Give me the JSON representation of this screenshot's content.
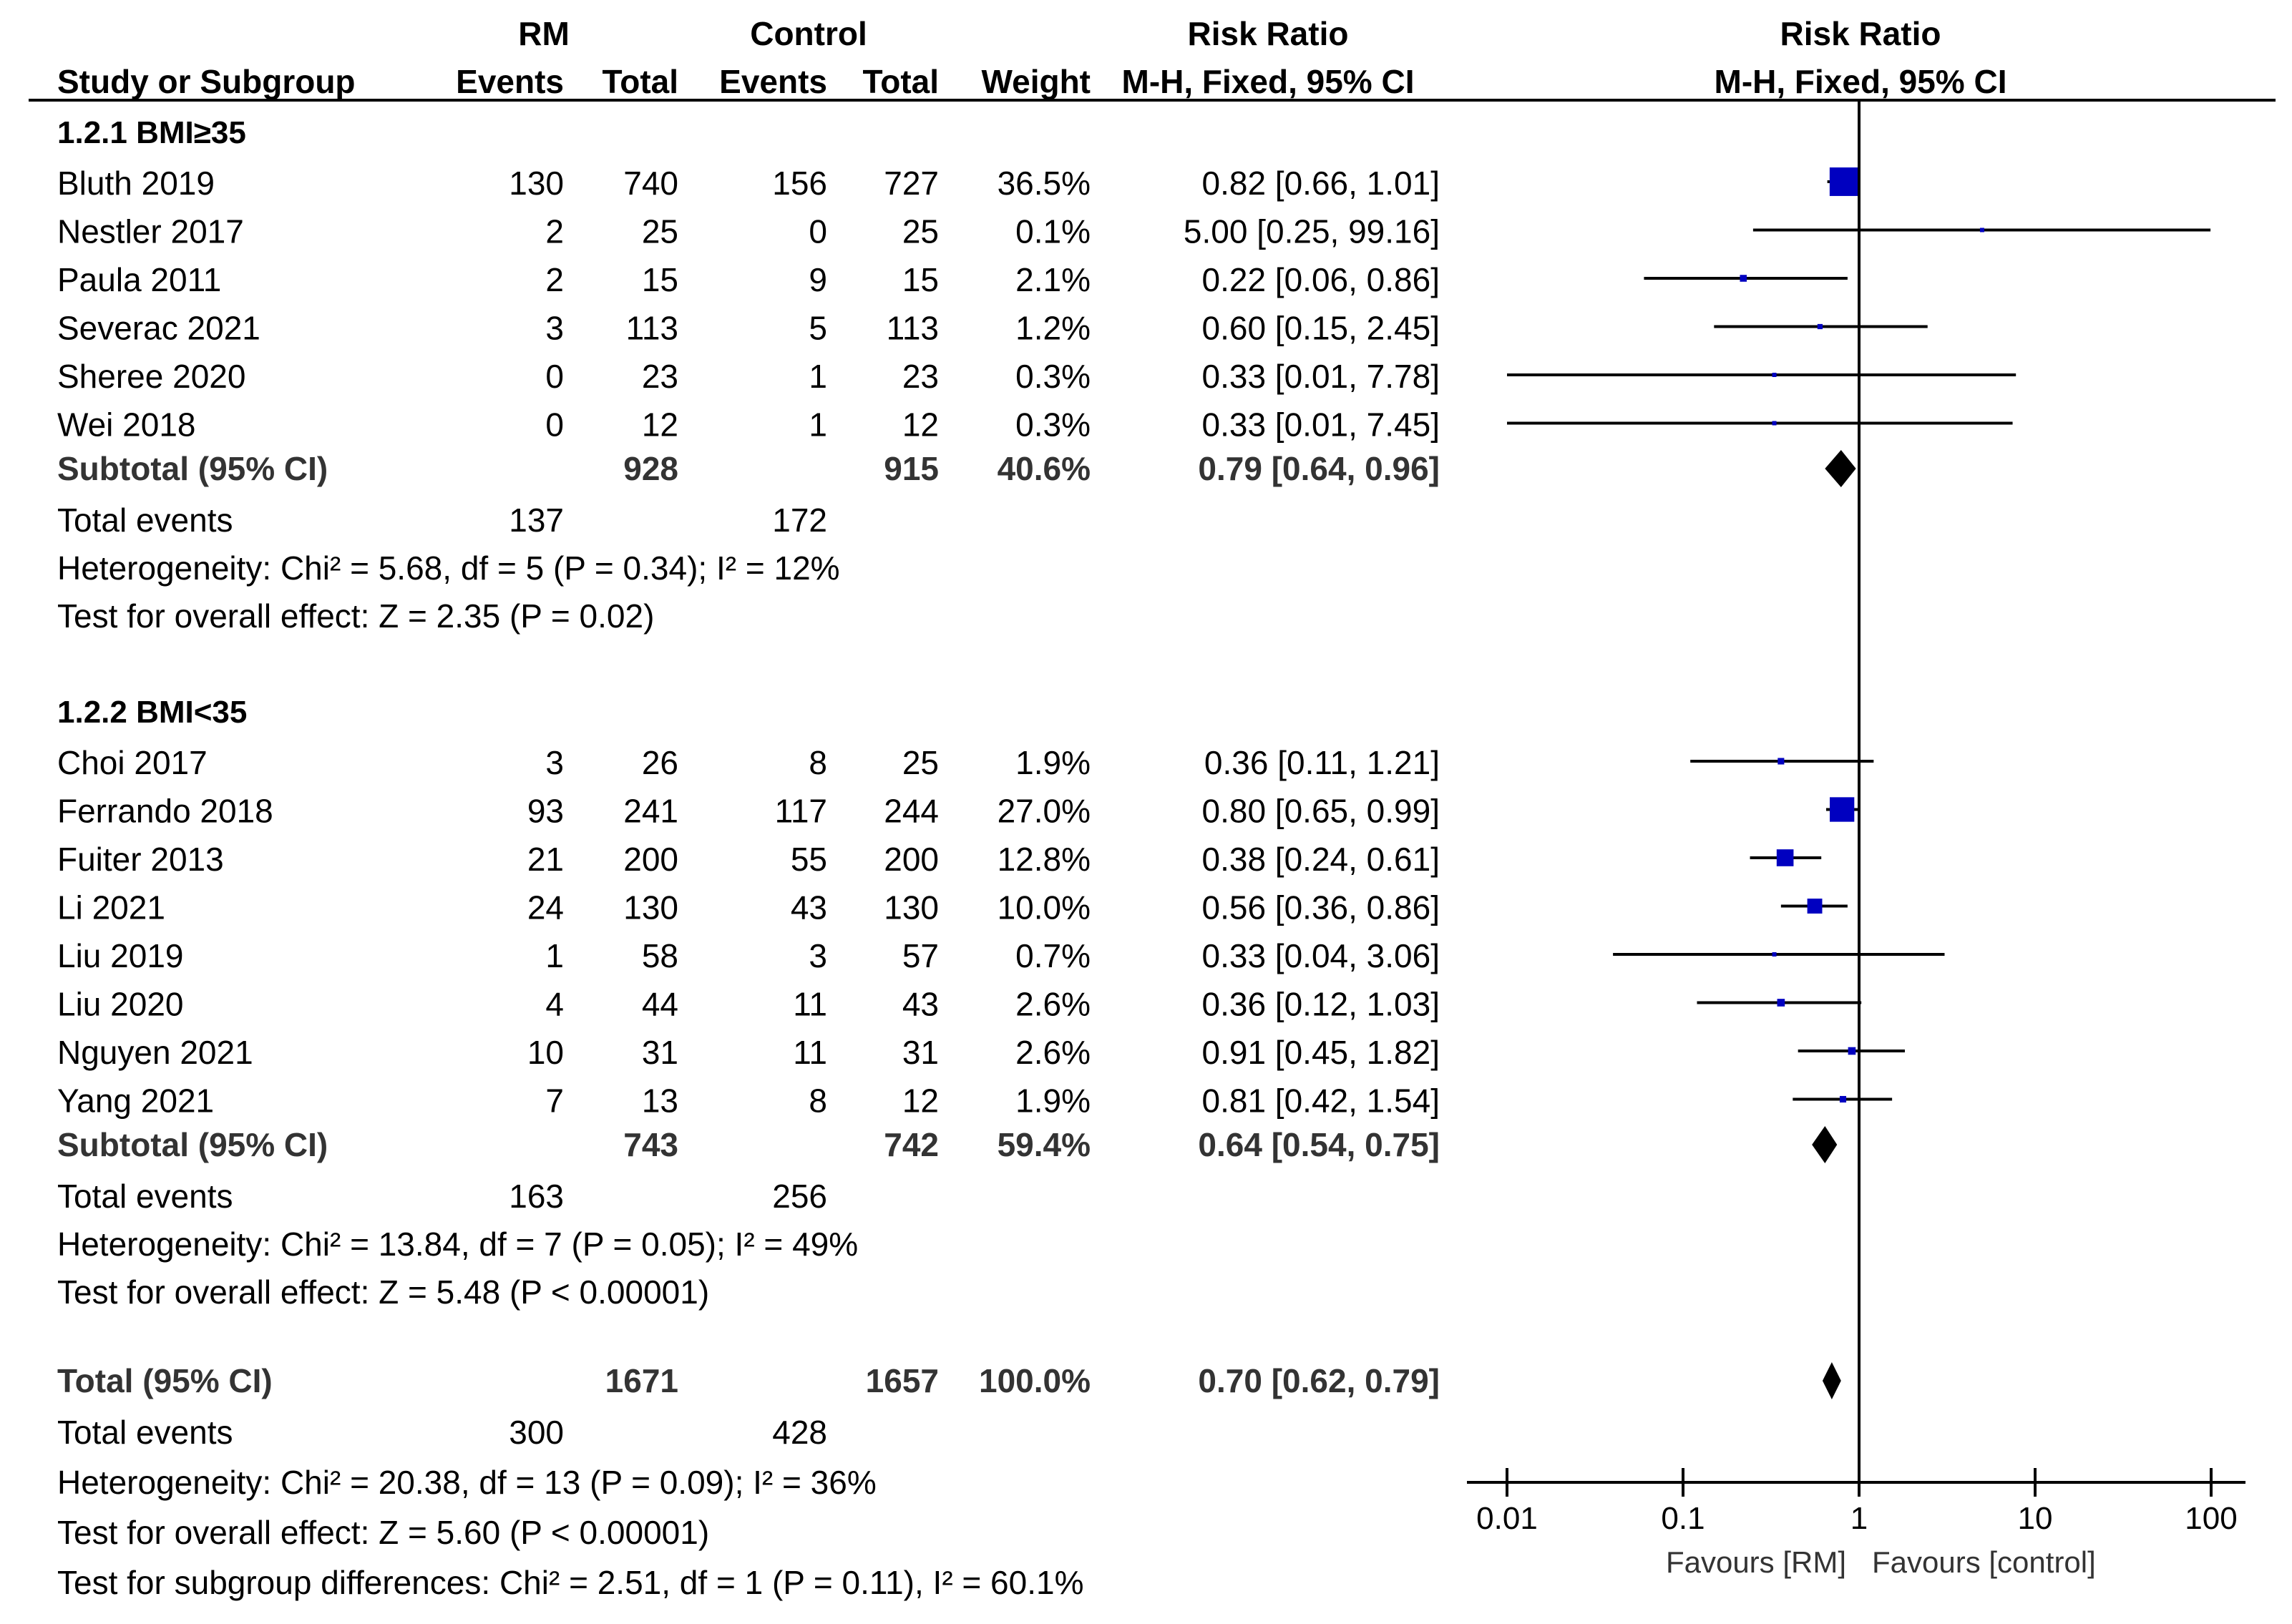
{
  "colors": {
    "square": "#0000c0",
    "diamond": "#000000",
    "line": "#000000"
  },
  "headers": {
    "group_rm": "RM",
    "group_control": "Control",
    "rr_top": "Risk Ratio",
    "plot_top": "Risk Ratio",
    "study": "Study or Subgroup",
    "events1": "Events",
    "total1": "Total",
    "events2": "Events",
    "total2": "Total",
    "weight": "Weight",
    "rr_method": "M-H, Fixed, 95% CI",
    "plot_method": "M-H, Fixed, 95% CI"
  },
  "chart_data": {
    "type": "forest",
    "xscale": "log",
    "xlim": [
      0.01,
      100
    ],
    "ticks": [
      "0.01",
      "0.1",
      "1",
      "10",
      "100"
    ],
    "favours_left": "Favours [RM]",
    "favours_right": "Favours [control]",
    "subgroups": [
      {
        "title": "1.2.1 BMI≥35",
        "studies": [
          {
            "name": "Bluth 2019",
            "e1": "130",
            "t1": "740",
            "e2": "156",
            "t2": "727",
            "weight": "36.5%",
            "ci_text": "0.82 [0.66, 1.01]",
            "rr": 0.82,
            "lo": 0.66,
            "hi": 1.01,
            "w": 36.5
          },
          {
            "name": "Nestler 2017",
            "e1": "2",
            "t1": "25",
            "e2": "0",
            "t2": "25",
            "weight": "0.1%",
            "ci_text": "5.00 [0.25, 99.16]",
            "rr": 5.0,
            "lo": 0.25,
            "hi": 99.16,
            "w": 0.1
          },
          {
            "name": "Paula 2011",
            "e1": "2",
            "t1": "15",
            "e2": "9",
            "t2": "15",
            "weight": "2.1%",
            "ci_text": "0.22 [0.06, 0.86]",
            "rr": 0.22,
            "lo": 0.06,
            "hi": 0.86,
            "w": 2.1
          },
          {
            "name": "Severac 2021",
            "e1": "3",
            "t1": "113",
            "e2": "5",
            "t2": "113",
            "weight": "1.2%",
            "ci_text": "0.60 [0.15, 2.45]",
            "rr": 0.6,
            "lo": 0.15,
            "hi": 2.45,
            "w": 1.2
          },
          {
            "name": "Sheree 2020",
            "e1": "0",
            "t1": "23",
            "e2": "1",
            "t2": "23",
            "weight": "0.3%",
            "ci_text": "0.33 [0.01, 7.78]",
            "rr": 0.33,
            "lo": 0.01,
            "hi": 7.78,
            "w": 0.3
          },
          {
            "name": "Wei 2018",
            "e1": "0",
            "t1": "12",
            "e2": "1",
            "t2": "12",
            "weight": "0.3%",
            "ci_text": "0.33 [0.01, 7.45]",
            "rr": 0.33,
            "lo": 0.01,
            "hi": 7.45,
            "w": 0.3
          }
        ],
        "subtotal": {
          "label": "Subtotal (95% CI)",
          "t1": "928",
          "t2": "915",
          "weight": "40.6%",
          "ci_text": "0.79 [0.64, 0.96]",
          "rr": 0.79,
          "lo": 0.64,
          "hi": 0.96
        },
        "total_events": {
          "label": "Total events",
          "e1": "137",
          "e2": "172"
        },
        "heterogeneity": "Heterogeneity: Chi² = 5.68, df = 5 (P = 0.34); I² = 12%",
        "overall": "Test for overall effect: Z = 2.35 (P = 0.02)"
      },
      {
        "title": "1.2.2 BMI<35",
        "studies": [
          {
            "name": "Choi 2017",
            "e1": "3",
            "t1": "26",
            "e2": "8",
            "t2": "25",
            "weight": "1.9%",
            "ci_text": "0.36 [0.11, 1.21]",
            "rr": 0.36,
            "lo": 0.11,
            "hi": 1.21,
            "w": 1.9
          },
          {
            "name": "Ferrando 2018",
            "e1": "93",
            "t1": "241",
            "e2": "117",
            "t2": "244",
            "weight": "27.0%",
            "ci_text": "0.80 [0.65, 0.99]",
            "rr": 0.8,
            "lo": 0.65,
            "hi": 0.99,
            "w": 27.0
          },
          {
            "name": "Fuiter 2013",
            "e1": "21",
            "t1": "200",
            "e2": "55",
            "t2": "200",
            "weight": "12.8%",
            "ci_text": "0.38 [0.24, 0.61]",
            "rr": 0.38,
            "lo": 0.24,
            "hi": 0.61,
            "w": 12.8
          },
          {
            "name": "Li 2021",
            "e1": "24",
            "t1": "130",
            "e2": "43",
            "t2": "130",
            "weight": "10.0%",
            "ci_text": "0.56 [0.36, 0.86]",
            "rr": 0.56,
            "lo": 0.36,
            "hi": 0.86,
            "w": 10.0
          },
          {
            "name": "Liu 2019",
            "e1": "1",
            "t1": "58",
            "e2": "3",
            "t2": "57",
            "weight": "0.7%",
            "ci_text": "0.33 [0.04, 3.06]",
            "rr": 0.33,
            "lo": 0.04,
            "hi": 3.06,
            "w": 0.7
          },
          {
            "name": "Liu 2020",
            "e1": "4",
            "t1": "44",
            "e2": "11",
            "t2": "43",
            "weight": "2.6%",
            "ci_text": "0.36 [0.12, 1.03]",
            "rr": 0.36,
            "lo": 0.12,
            "hi": 1.03,
            "w": 2.6
          },
          {
            "name": "Nguyen 2021",
            "e1": "10",
            "t1": "31",
            "e2": "11",
            "t2": "31",
            "weight": "2.6%",
            "ci_text": "0.91 [0.45, 1.82]",
            "rr": 0.91,
            "lo": 0.45,
            "hi": 1.82,
            "w": 2.6
          },
          {
            "name": "Yang 2021",
            "e1": "7",
            "t1": "13",
            "e2": "8",
            "t2": "12",
            "weight": "1.9%",
            "ci_text": "0.81 [0.42, 1.54]",
            "rr": 0.81,
            "lo": 0.42,
            "hi": 1.54,
            "w": 1.9
          }
        ],
        "subtotal": {
          "label": "Subtotal (95% CI)",
          "t1": "743",
          "t2": "742",
          "weight": "59.4%",
          "ci_text": "0.64 [0.54, 0.75]",
          "rr": 0.64,
          "lo": 0.54,
          "hi": 0.75
        },
        "total_events": {
          "label": "Total events",
          "e1": "163",
          "e2": "256"
        },
        "heterogeneity": "Heterogeneity: Chi² = 13.84, df = 7 (P = 0.05); I² = 49%",
        "overall": "Test for overall effect: Z = 5.48 (P < 0.00001)"
      }
    ],
    "total": {
      "label": "Total (95% CI)",
      "t1": "1671",
      "t2": "1657",
      "weight": "100.0%",
      "ci_text": "0.70 [0.62, 0.79]",
      "rr": 0.7,
      "lo": 0.62,
      "hi": 0.79
    },
    "total_events": {
      "label": "Total events",
      "e1": "300",
      "e2": "428"
    },
    "heterogeneity": "Heterogeneity: Chi² = 20.38, df = 13 (P = 0.09); I² = 36%",
    "overall": "Test for overall effect: Z = 5.60 (P < 0.00001)",
    "subgroup_diff": "Test for subgroup differences: Chi² = 2.51, df = 1 (P = 0.11), I² = 60.1%"
  }
}
